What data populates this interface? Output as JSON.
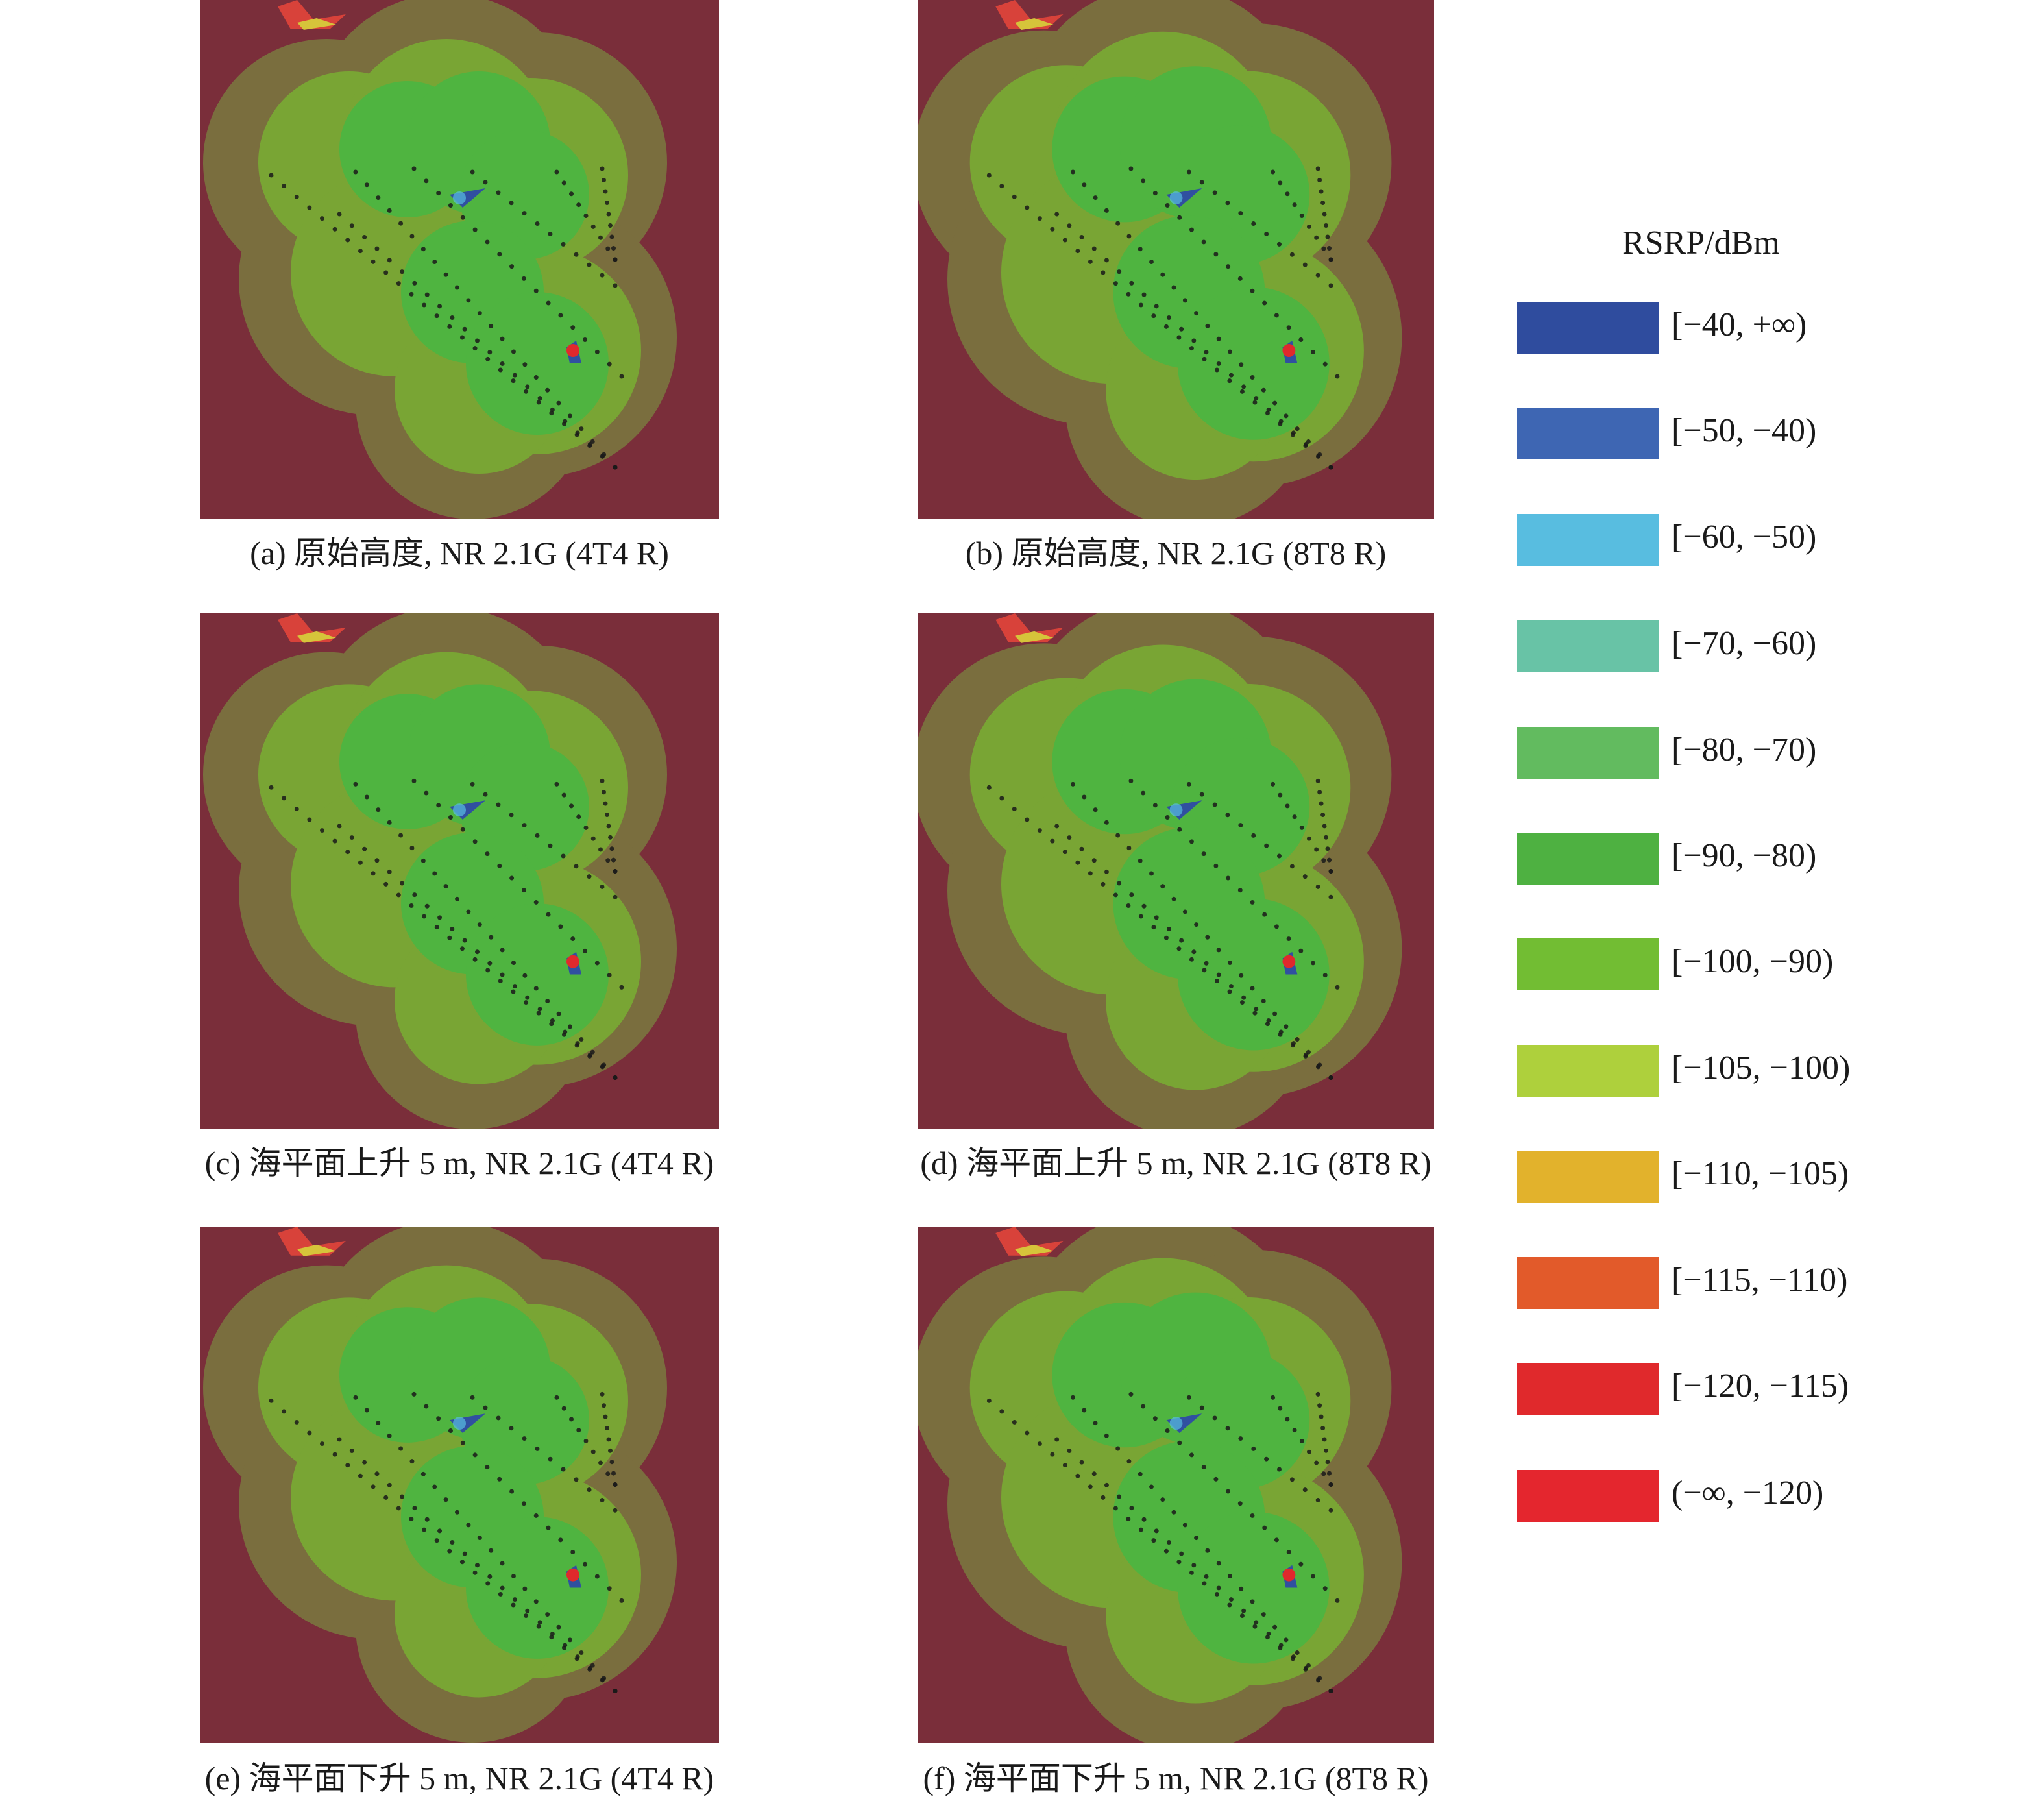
{
  "panels": [
    {
      "id": "a",
      "caption": "(a) 原始高度, NR 2.1G (4T4 R)"
    },
    {
      "id": "b",
      "caption": "(b) 原始高度, NR 2.1G (8T8 R)"
    },
    {
      "id": "c",
      "caption": "(c) 海平面上升 5 m, NR 2.1G (4T4 R)"
    },
    {
      "id": "d",
      "caption": "(d) 海平面上升 5 m, NR 2.1G (8T8 R)"
    },
    {
      "id": "e",
      "caption": "(e) 海平面下升 5 m, NR 2.1G (4T4 R)"
    },
    {
      "id": "f",
      "caption": "(f) 海平面下升 5 m, NR 2.1G (8T8 R)"
    }
  ],
  "legend": {
    "title": "RSRP/dBm",
    "items": [
      {
        "label": "[−40,  +∞)",
        "color": "#2f4c9e"
      },
      {
        "label": "[−50,  −40)",
        "color": "#3e66b3"
      },
      {
        "label": "[−60,  −50)",
        "color": "#58bde0"
      },
      {
        "label": "[−70,  −60)",
        "color": "#68c3a6"
      },
      {
        "label": "[−80,  −70)",
        "color": "#62bb5f"
      },
      {
        "label": "[−90,  −80)",
        "color": "#4eb141"
      },
      {
        "label": "[−100,  −90)",
        "color": "#72bd33"
      },
      {
        "label": "[−105,  −100)",
        "color": "#aed03c"
      },
      {
        "label": "[−110,  −105)",
        "color": "#e2b22c"
      },
      {
        "label": "[−115,  −110)",
        "color": "#e25a2a"
      },
      {
        "label": "[−120,  −115)",
        "color": "#e0292c"
      },
      {
        "label": "(−∞,  −120)",
        "color": "#e4262e"
      }
    ]
  },
  "map_colors": {
    "background": "#7a2e3a",
    "outer_zone": "#7a6e3e",
    "mid_zone": "#79a534",
    "inner_zone": "#4fb440",
    "core_zone": "#45b04b"
  }
}
